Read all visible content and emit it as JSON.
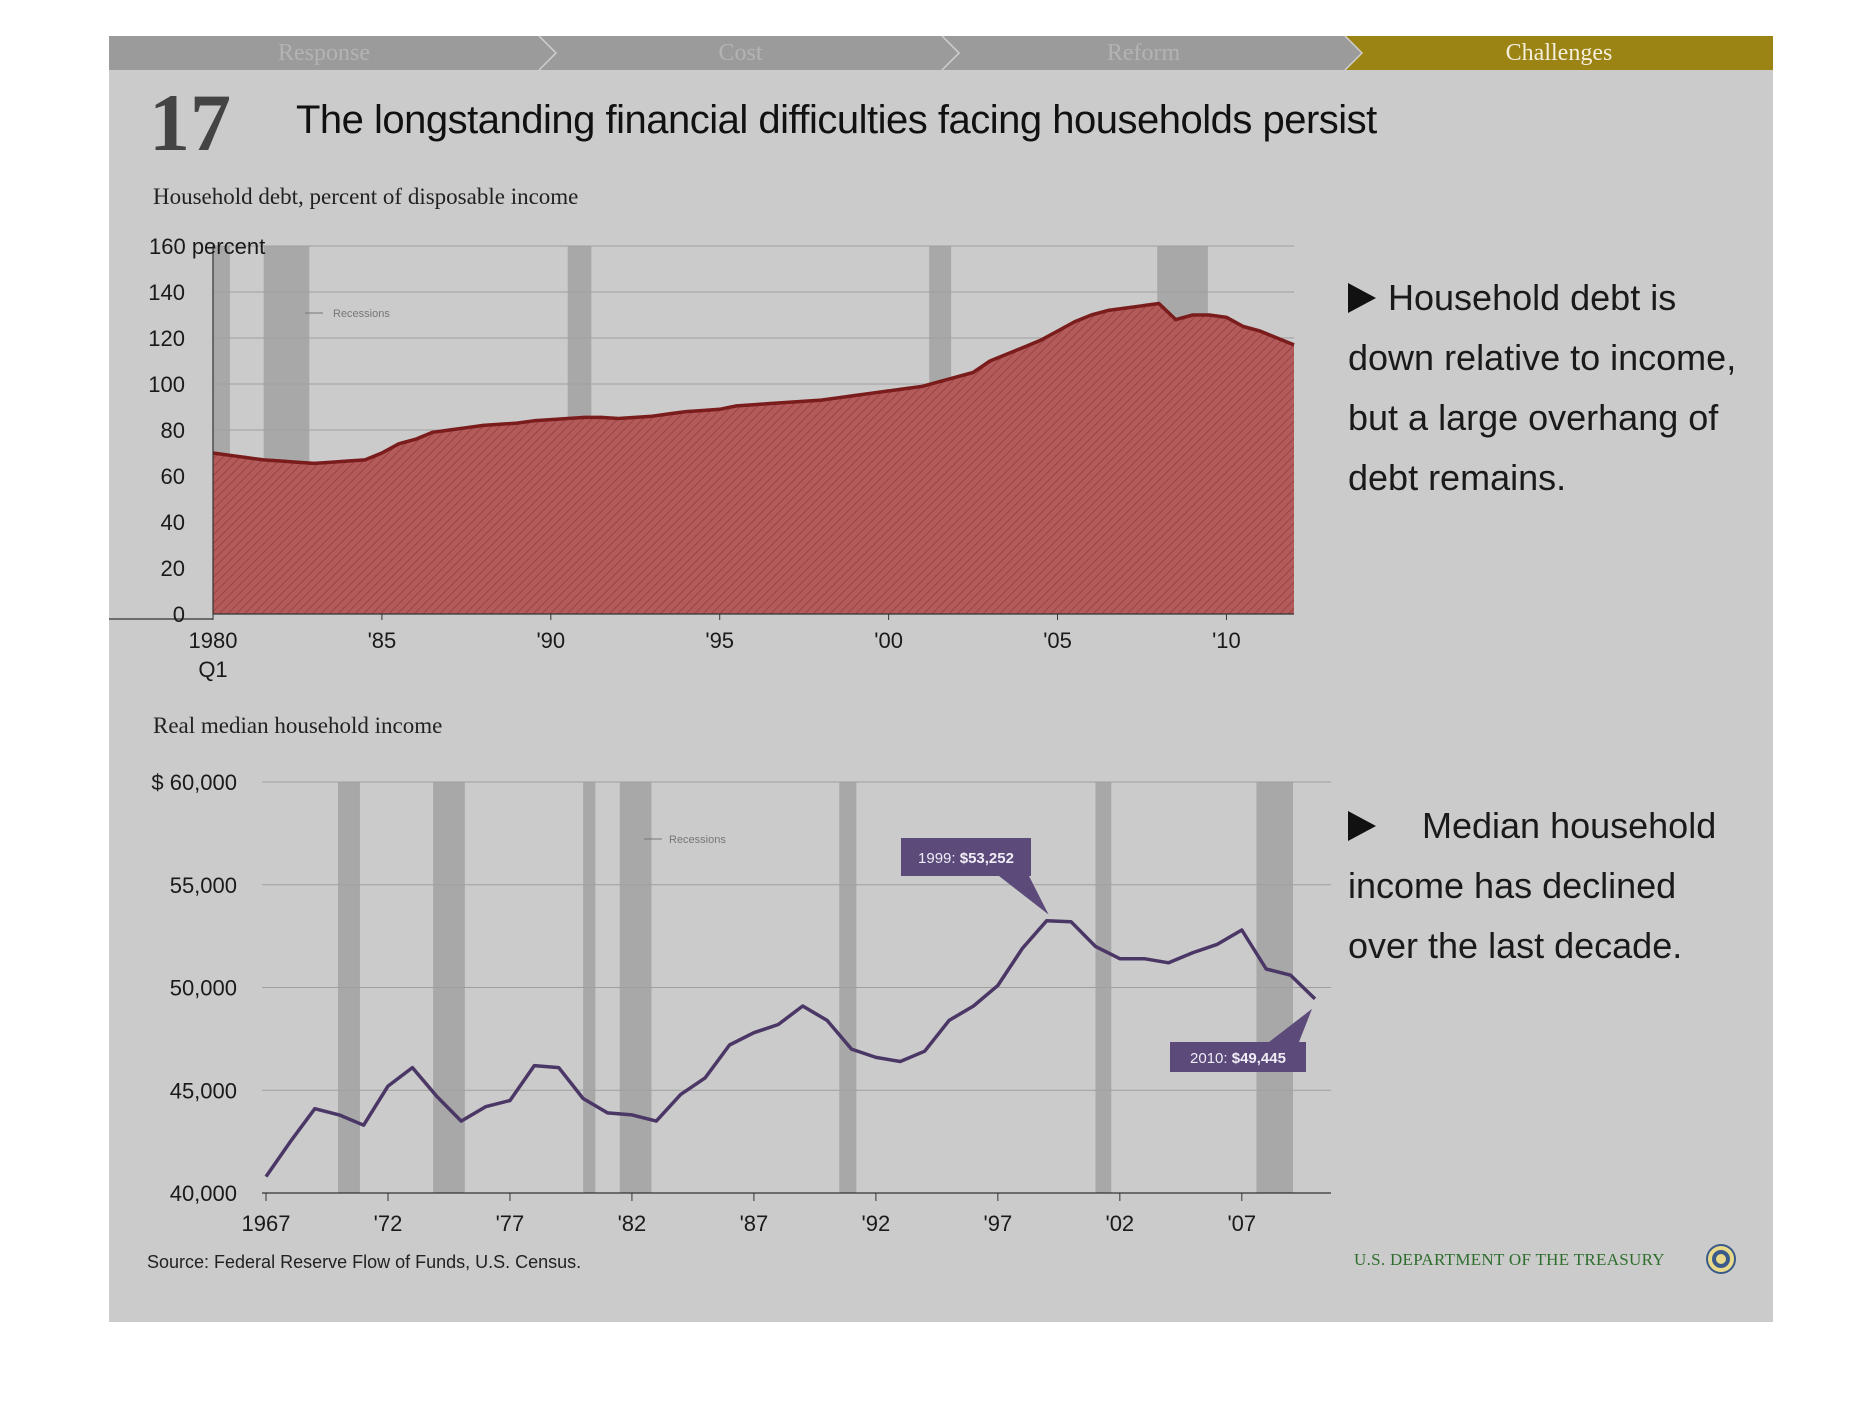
{
  "nav": {
    "tabs": [
      {
        "label": "Response",
        "active": false
      },
      {
        "label": "Cost",
        "active": false
      },
      {
        "label": "Reform",
        "active": false
      },
      {
        "label": "Challenges",
        "active": true
      }
    ],
    "active_color": "#9b8413",
    "inactive_color": "#9b9b9b"
  },
  "slide": {
    "number": "17",
    "title": "The longstanding financial difficulties facing households persist"
  },
  "bullets": [
    {
      "text": "Household debt is down relative to income, but a large overhang of debt remains."
    },
    {
      "text": "Median household income has declined over the last decade."
    }
  ],
  "footer": {
    "source": "Source: Federal Reserve Flow of Funds, U.S. Census.",
    "treasury": "U.S. DEPARTMENT OF THE TREASURY",
    "seal_icon": "treasury-seal-icon"
  },
  "chart_data": [
    {
      "type": "area",
      "title": "Household debt, percent of disposable income",
      "xlabel": "",
      "ylabel": "",
      "unit_label": "160 percent",
      "ylim": [
        0,
        160
      ],
      "xlim": [
        1980,
        2012
      ],
      "yticks": [
        {
          "value": 0,
          "label": "0"
        },
        {
          "value": 20,
          "label": "20"
        },
        {
          "value": 40,
          "label": "40"
        },
        {
          "value": 60,
          "label": "60"
        },
        {
          "value": 80,
          "label": "80"
        },
        {
          "value": 100,
          "label": "100"
        },
        {
          "value": 120,
          "label": "120"
        },
        {
          "value": 140,
          "label": "140"
        },
        {
          "value": 160,
          "label": "160 percent"
        }
      ],
      "xticks": [
        {
          "value": 1980,
          "label": "1980",
          "sublabel": "Q1"
        },
        {
          "value": 1985,
          "label": "'85"
        },
        {
          "value": 1990,
          "label": "'90"
        },
        {
          "value": 1995,
          "label": "'95"
        },
        {
          "value": 2000,
          "label": "'00"
        },
        {
          "value": 2005,
          "label": "'05"
        },
        {
          "value": 2010,
          "label": "'10"
        }
      ],
      "recessions": [
        [
          1980.0,
          1980.5
        ],
        [
          1981.5,
          1982.85
        ],
        [
          1990.5,
          1991.2
        ],
        [
          2001.2,
          2001.85
        ],
        [
          2007.95,
          2009.45
        ]
      ],
      "legend": "Recessions",
      "grid": true,
      "fill_color": "#b35a5a",
      "line_color": "#7a1c1c",
      "x": [
        1980,
        1980.5,
        1981,
        1981.5,
        1982,
        1982.5,
        1983,
        1983.5,
        1984,
        1984.5,
        1985,
        1985.5,
        1986,
        1986.5,
        1987,
        1987.5,
        1988,
        1988.5,
        1989,
        1989.5,
        1990,
        1990.5,
        1991,
        1991.5,
        1992,
        1992.5,
        1993,
        1993.5,
        1994,
        1994.5,
        1995,
        1995.5,
        1996,
        1996.5,
        1997,
        1997.5,
        1998,
        1998.5,
        1999,
        1999.5,
        2000,
        2000.5,
        2001,
        2001.5,
        2002,
        2002.5,
        2003,
        2003.5,
        2004,
        2004.5,
        2005,
        2005.5,
        2006,
        2006.5,
        2007,
        2007.5,
        2008,
        2008.5,
        2009,
        2009.5,
        2010,
        2010.5,
        2011,
        2011.5,
        2012
      ],
      "values": [
        70,
        69,
        68,
        67,
        66.5,
        66,
        65.5,
        66,
        66.5,
        67,
        70,
        74,
        76,
        79,
        80,
        81,
        82,
        82.5,
        83,
        84,
        84.5,
        85,
        85.5,
        85.5,
        85,
        85.5,
        86,
        87,
        88,
        88.5,
        89,
        90.5,
        91,
        91.5,
        92,
        92.5,
        93,
        94,
        95,
        96,
        97,
        98,
        99,
        101,
        103,
        105,
        110,
        113,
        116,
        119,
        123,
        127,
        130,
        132,
        133,
        134,
        135,
        128,
        130,
        130,
        129,
        125,
        123,
        120,
        117
      ]
    },
    {
      "type": "line",
      "title": "Real median household income",
      "xlabel": "",
      "ylabel": "",
      "ylim": [
        40000,
        60000
      ],
      "xlim": [
        1967,
        2010
      ],
      "yticks": [
        {
          "value": 40000,
          "label": "40,000"
        },
        {
          "value": 45000,
          "label": "45,000"
        },
        {
          "value": 50000,
          "label": "50,000"
        },
        {
          "value": 55000,
          "label": "55,000"
        },
        {
          "value": 60000,
          "label": "$ 60,000"
        }
      ],
      "xticks": [
        {
          "value": 1967,
          "label": "1967"
        },
        {
          "value": 1972,
          "label": "'72"
        },
        {
          "value": 1977,
          "label": "'77"
        },
        {
          "value": 1982,
          "label": "'82"
        },
        {
          "value": 1987,
          "label": "'87"
        },
        {
          "value": 1992,
          "label": "'92"
        },
        {
          "value": 1997,
          "label": "'97"
        },
        {
          "value": 2002,
          "label": "'02"
        },
        {
          "value": 2007,
          "label": "'07"
        }
      ],
      "recessions": [
        [
          1969.95,
          1970.85
        ],
        [
          1973.85,
          1975.15
        ],
        [
          1980.0,
          1980.5
        ],
        [
          1981.5,
          1982.8
        ],
        [
          1990.5,
          1991.2
        ],
        [
          2001.0,
          2001.65
        ],
        [
          2007.6,
          2009.1
        ]
      ],
      "legend": "Recessions",
      "grid": true,
      "line_color": "#4b3766",
      "x": [
        1967,
        1968,
        1969,
        1970,
        1971,
        1972,
        1973,
        1974,
        1975,
        1976,
        1977,
        1978,
        1979,
        1980,
        1981,
        1982,
        1983,
        1984,
        1985,
        1986,
        1987,
        1988,
        1989,
        1990,
        1991,
        1992,
        1993,
        1994,
        1995,
        1996,
        1997,
        1998,
        1999,
        2000,
        2001,
        2002,
        2003,
        2004,
        2005,
        2006,
        2007,
        2008,
        2009,
        2010
      ],
      "values": [
        40800,
        42500,
        44100,
        43800,
        43300,
        45200,
        46100,
        44700,
        43500,
        44200,
        44500,
        46200,
        46100,
        44600,
        43900,
        43800,
        43500,
        44800,
        45600,
        47200,
        47800,
        48200,
        49100,
        48400,
        47000,
        46600,
        46400,
        46900,
        48400,
        49100,
        50100,
        51900,
        53252,
        53200,
        52000,
        51400,
        51400,
        51200,
        51700,
        52100,
        52800,
        50900,
        50600,
        49445
      ],
      "annotations": [
        {
          "x": 1999,
          "y": 53252,
          "year_label": "1999:",
          "value_label": "$53,252"
        },
        {
          "x": 2010,
          "y": 49445,
          "year_label": "2010:",
          "value_label": "$49,445"
        }
      ],
      "annotation_color": "#5b4a7a"
    }
  ]
}
